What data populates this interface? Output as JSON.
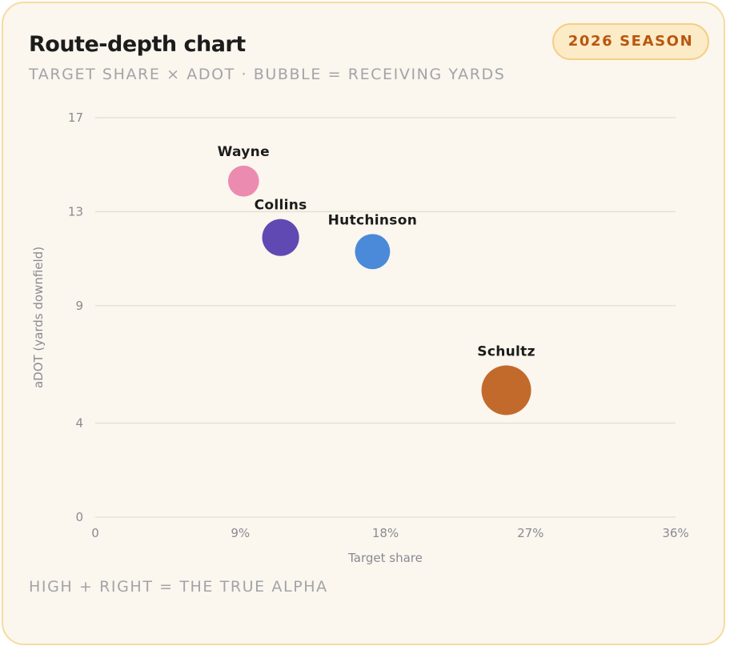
{
  "header": {
    "title": "Route-depth chart",
    "subtitle": "TARGET SHARE × ADOT · BUBBLE = RECEIVING YARDS",
    "badge": "2026 SEASON"
  },
  "footer": {
    "note": "HIGH + RIGHT = THE TRUE ALPHA"
  },
  "chart_data": {
    "type": "scatter",
    "xlabel": "Target share",
    "ylabel": "aDOT (yards downfield)",
    "xlim": [
      0,
      36
    ],
    "ylim": [
      0,
      17
    ],
    "x_ticks": [
      {
        "value": 0,
        "label": "0"
      },
      {
        "value": 9,
        "label": "9%"
      },
      {
        "value": 18,
        "label": "18%"
      },
      {
        "value": 27,
        "label": "27%"
      },
      {
        "value": 36,
        "label": "36%"
      }
    ],
    "y_ticks": [
      {
        "value": 0,
        "label": "0"
      },
      {
        "value": 4,
        "label": "4"
      },
      {
        "value": 9,
        "label": "9"
      },
      {
        "value": 13,
        "label": "13"
      },
      {
        "value": 17,
        "label": "17"
      }
    ],
    "grid": true,
    "points": [
      {
        "name": "Wayne",
        "x": 9.2,
        "y": 14.3,
        "yards": 500,
        "color": "#ec8bb0"
      },
      {
        "name": "Collins",
        "x": 11.5,
        "y": 11.9,
        "yards": 710,
        "color": "#6149b3"
      },
      {
        "name": "Hutchinson",
        "x": 17.2,
        "y": 11.3,
        "yards": 640,
        "color": "#4a8ad8"
      },
      {
        "name": "Schultz",
        "x": 25.5,
        "y": 5.4,
        "yards": 1280,
        "color": "#c26a2c"
      }
    ]
  }
}
